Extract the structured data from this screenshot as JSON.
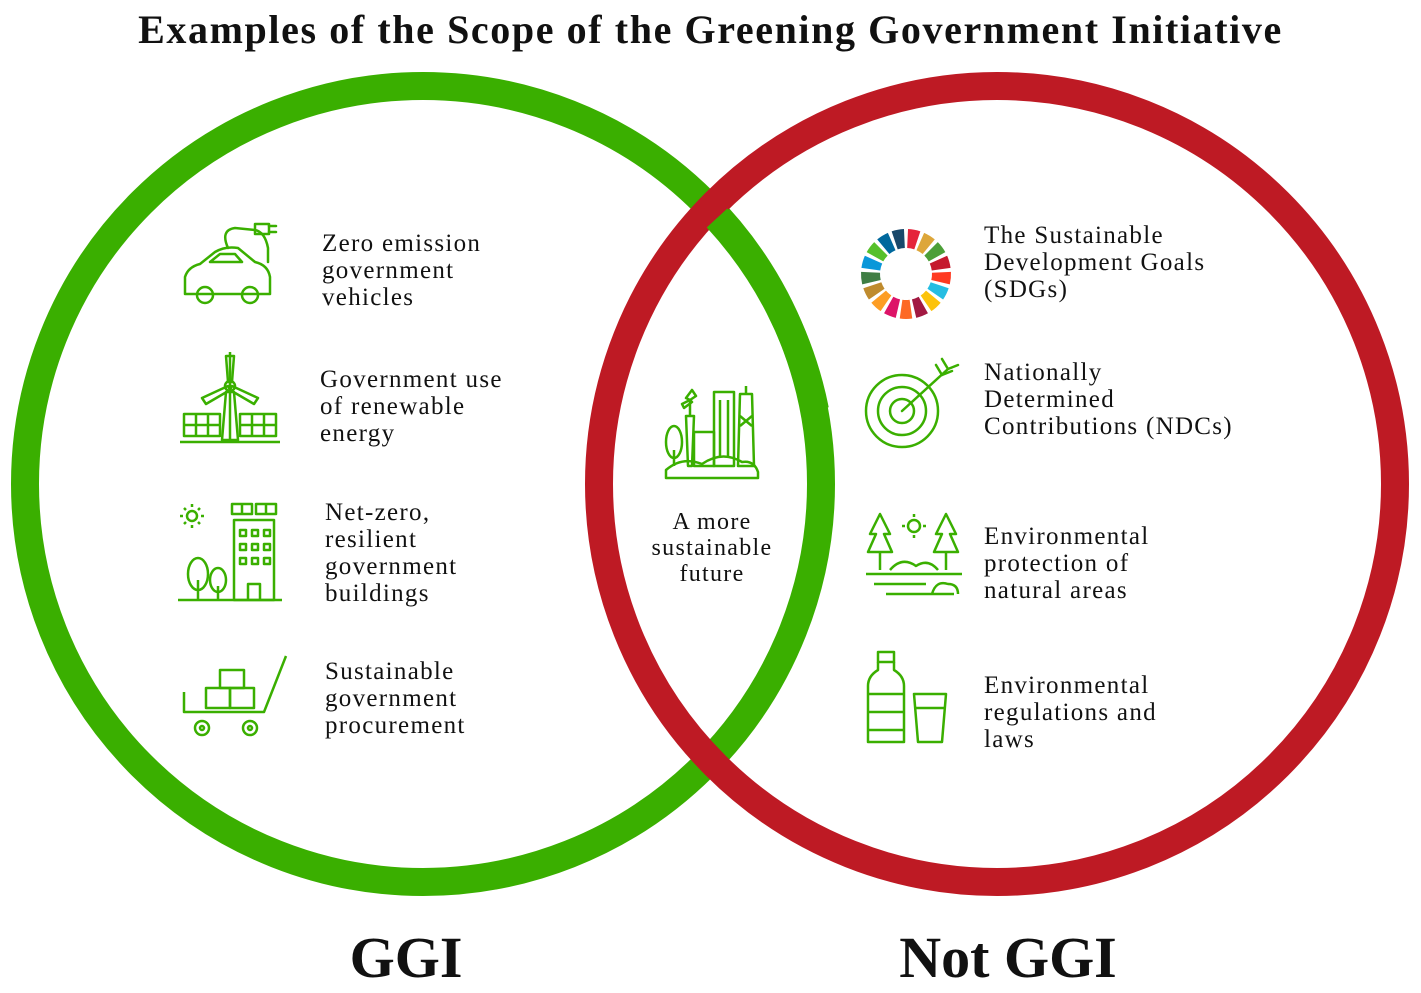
{
  "title": "Examples of the Scope of the Greening Government Initiative",
  "colors": {
    "ggi": "#3aaf00",
    "not_ggi": "#be1a24",
    "icon": "#3aaf00"
  },
  "ggi": {
    "label": "GGI",
    "items": [
      {
        "icon": "electric-car-icon",
        "text": "Zero emission\ngovernment\nvehicles"
      },
      {
        "icon": "renewable-energy-icon",
        "text": "Government use\nof renewable\nenergy"
      },
      {
        "icon": "net-zero-building-icon",
        "text": "Net-zero,\nresilient\ngovernment\nbuildings"
      },
      {
        "icon": "procurement-cart-icon",
        "text": "Sustainable\ngovernment\nprocurement"
      }
    ]
  },
  "overlap": {
    "icon": "sustainable-city-icon",
    "text": "A more\nsustainable\nfuture"
  },
  "not_ggi": {
    "label": "Not GGI",
    "items": [
      {
        "icon": "sdg-wheel-icon",
        "text": "The Sustainable\nDevelopment Goals\n(SDGs)"
      },
      {
        "icon": "target-arrow-icon",
        "text": "Nationally\nDetermined\nContributions (NDCs)"
      },
      {
        "icon": "nature-trees-icon",
        "text": "Environmental\nprotection of\nnatural areas"
      },
      {
        "icon": "bottle-glass-icon",
        "text": "Environmental\nregulations and\nlaws"
      }
    ]
  }
}
